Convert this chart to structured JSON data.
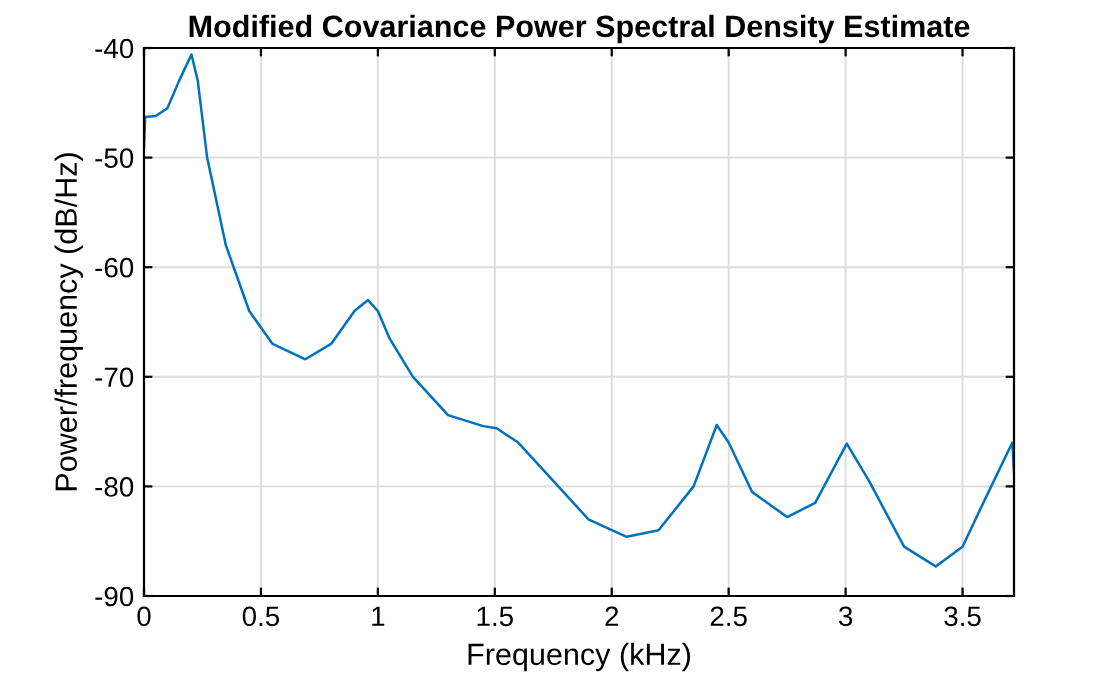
{
  "chart_data": {
    "type": "line",
    "title": "Modified Covariance Power Spectral Density Estimate",
    "xlabel": "Frequency (kHz)",
    "ylabel": "Power/frequency (dB/Hz)",
    "xlim": [
      0,
      3.72
    ],
    "ylim": [
      -90,
      -40
    ],
    "xticks": [
      0,
      0.5,
      1,
      1.5,
      2,
      2.5,
      3,
      3.5
    ],
    "yticks": [
      -90,
      -80,
      -70,
      -60,
      -50,
      -40
    ],
    "grid": true,
    "series": [
      {
        "color": "#0072bd",
        "x": [
          0,
          0.005,
          0.05,
          0.1,
          0.15,
          0.203,
          0.23,
          0.27,
          0.35,
          0.45,
          0.55,
          0.69,
          0.8,
          0.9,
          0.958,
          1.0,
          1.05,
          1.15,
          1.3,
          1.45,
          1.508,
          1.6,
          1.75,
          1.9,
          2.064,
          2.2,
          2.35,
          2.449,
          2.5,
          2.6,
          2.75,
          2.87,
          3.005,
          3.1,
          3.25,
          3.385,
          3.5,
          3.6,
          3.713,
          3.72
        ],
        "values": [
          -49,
          -46.3,
          -46.2,
          -45.5,
          -43,
          -40.6,
          -43,
          -50,
          -58,
          -64,
          -67,
          -68.4,
          -67,
          -64,
          -63,
          -64,
          -66.5,
          -70,
          -73.5,
          -74.5,
          -74.7,
          -76,
          -79.5,
          -83,
          -84.6,
          -84,
          -80,
          -74.4,
          -76,
          -80.5,
          -82.8,
          -81.5,
          -76.1,
          -79.5,
          -85.5,
          -87.3,
          -85.5,
          -81,
          -76,
          -78.7
        ]
      }
    ]
  }
}
